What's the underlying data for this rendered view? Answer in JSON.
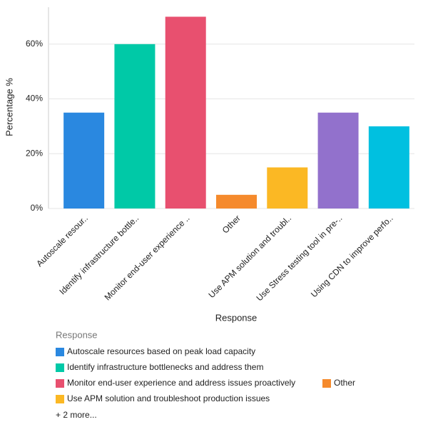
{
  "chart_data": {
    "type": "bar",
    "x_label": "Response",
    "y_label": "Percentage %",
    "categories": [
      "Autoscale resour..",
      "Identify infrastructure bottle..",
      "Monitor end-user experience ..",
      "Other",
      "Use APM solution and troubl..",
      "Use Stress testing tool in pre-..",
      "Using CDN to improve perfo.."
    ],
    "values": [
      35,
      60,
      70,
      5,
      15,
      35,
      30
    ],
    "colors": [
      "#2a88e0",
      "#00c9a7",
      "#e8506f",
      "#f58a2c",
      "#fbb824",
      "#9271cc",
      "#00c0e0"
    ],
    "ylim": [
      0,
      73.5
    ],
    "yticks": [
      {
        "value": 0,
        "label": "0%"
      },
      {
        "value": 20,
        "label": "20%"
      },
      {
        "value": 40,
        "label": "40%"
      },
      {
        "value": 60,
        "label": "60%"
      }
    ],
    "grid": true,
    "legend": {
      "title": "Response",
      "items": [
        "Autoscale resources based on peak load capacity",
        "Identify infrastructure bottlenecks and address them",
        "Monitor end-user experience and address issues proactively",
        "Other",
        "Use APM solution and troubleshoot production issues"
      ],
      "more": "+ 2 more..."
    }
  }
}
